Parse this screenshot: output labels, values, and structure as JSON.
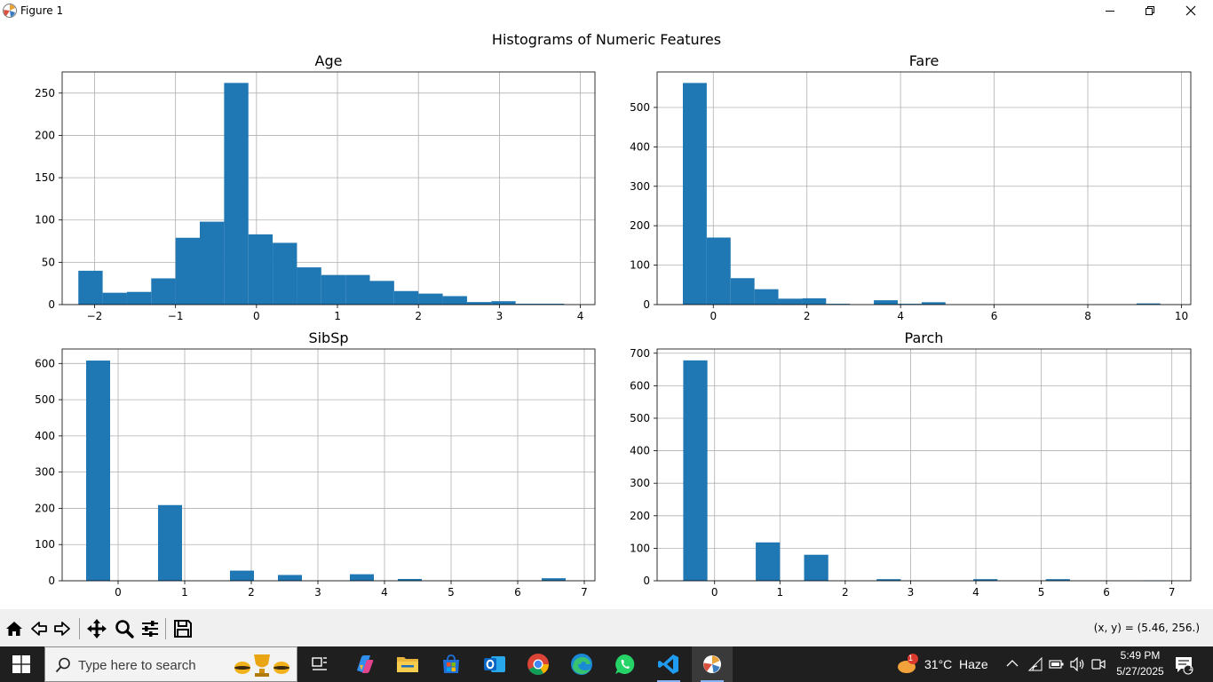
{
  "window": {
    "title": "Figure 1"
  },
  "figure": {
    "suptitle": "Histograms of Numeric Features"
  },
  "chart_data": [
    {
      "type": "bar",
      "title": "Age",
      "xlim": [
        -2.4,
        4.18
      ],
      "ylim": [
        0,
        275
      ],
      "xticks": [
        -2,
        -1,
        0,
        1,
        2,
        3,
        4
      ],
      "xtick_labels": [
        "−2",
        "−1",
        "0",
        "1",
        "2",
        "3",
        "4"
      ],
      "yticks": [
        0,
        50,
        100,
        150,
        200,
        250
      ],
      "ytick_labels": [
        "0",
        "50",
        "100",
        "150",
        "200",
        "250"
      ],
      "bin_edges": [
        -2.2,
        -1.9,
        -1.6,
        -1.3,
        -1.0,
        -0.7,
        -0.4,
        -0.1,
        0.2,
        0.5,
        0.8,
        1.1,
        1.4,
        1.7,
        2.0,
        2.3,
        2.6,
        2.9,
        3.2,
        3.5,
        3.8
      ],
      "values": [
        40,
        14,
        15,
        31,
        79,
        98,
        262,
        83,
        73,
        44,
        35,
        35,
        28,
        16,
        13,
        10,
        3,
        4,
        1,
        1
      ],
      "grid": true
    },
    {
      "type": "bar",
      "title": "Fare",
      "xlim": [
        -1.2,
        10.2
      ],
      "ylim": [
        0,
        590
      ],
      "xticks": [
        0,
        2,
        4,
        6,
        8,
        10
      ],
      "xtick_labels": [
        "0",
        "2",
        "4",
        "6",
        "8",
        "10"
      ],
      "yticks": [
        0,
        100,
        200,
        300,
        400,
        500
      ],
      "ytick_labels": [
        "0",
        "100",
        "200",
        "300",
        "400",
        "500"
      ],
      "bin_edges": [
        -0.65,
        -0.14,
        0.37,
        0.88,
        1.39,
        1.9,
        2.41,
        2.92,
        3.43,
        3.94,
        4.45,
        4.96,
        5.47,
        5.98,
        6.49,
        7.0,
        7.51,
        8.02,
        8.53,
        9.04,
        9.55
      ],
      "values": [
        562,
        170,
        67,
        39,
        15,
        16,
        2,
        0,
        11,
        2,
        6,
        0,
        0,
        0,
        0,
        0,
        0,
        0,
        0,
        3
      ],
      "grid": true
    },
    {
      "type": "bar",
      "title": "SibSp",
      "xlim": [
        -0.84,
        7.16
      ],
      "ylim": [
        0,
        640
      ],
      "xticks": [
        0,
        1,
        2,
        3,
        4,
        5,
        6,
        7
      ],
      "xtick_labels": [
        "0",
        "1",
        "2",
        "3",
        "4",
        "5",
        "6",
        "7"
      ],
      "yticks": [
        0,
        100,
        200,
        300,
        400,
        500,
        600
      ],
      "ytick_labels": [
        "0",
        "100",
        "200",
        "300",
        "400",
        "500",
        "600"
      ],
      "bin_edges": [
        -0.48,
        -0.12,
        0.24,
        0.6,
        0.96,
        1.32,
        1.68,
        2.04,
        2.4,
        2.76,
        3.12,
        3.48,
        3.84,
        4.2,
        4.56,
        4.92,
        5.28,
        5.64,
        6.0,
        6.36,
        6.72
      ],
      "values": [
        608,
        0,
        0,
        209,
        0,
        0,
        28,
        0,
        16,
        0,
        0,
        18,
        0,
        5,
        0,
        0,
        0,
        0,
        0,
        7
      ],
      "grid": true
    },
    {
      "type": "bar",
      "title": "Parch",
      "xlim": [
        -0.88,
        7.29
      ],
      "ylim": [
        0,
        713
      ],
      "xticks": [
        0,
        1,
        2,
        3,
        4,
        5,
        6,
        7
      ],
      "xtick_labels": [
        "0",
        "1",
        "2",
        "3",
        "4",
        "5",
        "6",
        "7"
      ],
      "yticks": [
        0,
        100,
        200,
        300,
        400,
        500,
        600,
        700
      ],
      "ytick_labels": [
        "0",
        "100",
        "200",
        "300",
        "400",
        "500",
        "600",
        "700"
      ],
      "bin_edges": [
        -0.48,
        -0.11,
        0.26,
        0.63,
        1.0,
        1.37,
        1.74,
        2.11,
        2.48,
        2.85,
        3.22,
        3.59,
        3.96,
        4.33,
        4.7,
        5.07,
        5.44,
        5.81,
        6.18,
        6.55,
        6.92
      ],
      "values": [
        678,
        0,
        0,
        118,
        0,
        80,
        0,
        0,
        5,
        0,
        0,
        0,
        5,
        0,
        0,
        5,
        0,
        0,
        0,
        1
      ],
      "grid": true
    }
  ],
  "colors": {
    "bar": "#1f77b4",
    "grid": "#b0b0b0"
  },
  "toolbar": {
    "icons": [
      "home-icon",
      "back-icon",
      "forward-icon",
      "pan-icon",
      "zoom-icon",
      "configure-subplots-icon",
      "save-icon"
    ],
    "coords": "(x, y) = (5.46, 256.)"
  },
  "taskbar": {
    "search_placeholder": "Type here to search",
    "weather_temp": "31°C",
    "weather_desc": "Haze",
    "weather_badge": "1",
    "time": "5:49 PM",
    "date": "5/27/2025",
    "notification_count": "1"
  }
}
